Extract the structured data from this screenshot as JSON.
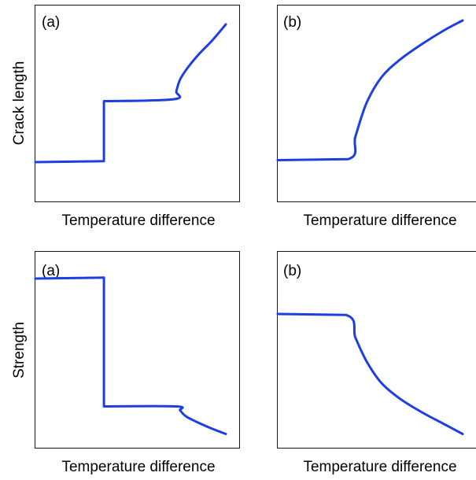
{
  "colors": {
    "curve": "#1d3fe0",
    "frame": "#1a1a1a"
  },
  "chart_data": [
    {
      "type": "line",
      "panel_label": "(a)",
      "xlabel": "Temperature difference",
      "ylabel": "Crack length",
      "x_range": [
        0,
        1
      ],
      "y_range": [
        0,
        1
      ],
      "series": [
        {
          "x": [
            0,
            0.36,
            0.36,
            0.73,
            0.74,
            0.76,
            0.8,
            0.86,
            0.93,
            1.0
          ],
          "y": [
            0.2,
            0.205,
            0.51,
            0.52,
            0.56,
            0.62,
            0.68,
            0.75,
            0.82,
            0.9
          ]
        }
      ]
    },
    {
      "type": "line",
      "panel_label": "(b)",
      "xlabel": "Temperature difference",
      "ylabel": "",
      "x_range": [
        0,
        1
      ],
      "y_range": [
        0,
        1
      ],
      "series": [
        {
          "x": [
            0,
            0.38,
            0.42,
            0.48,
            0.56,
            0.66,
            0.78,
            0.9,
            1.0
          ],
          "y": [
            0.21,
            0.215,
            0.33,
            0.5,
            0.63,
            0.72,
            0.8,
            0.87,
            0.92
          ]
        }
      ]
    },
    {
      "type": "line",
      "panel_label": "(a)",
      "xlabel": "Temperature difference",
      "ylabel": "Strength",
      "x_range": [
        0,
        1
      ],
      "y_range": [
        0,
        1
      ],
      "series": [
        {
          "x": [
            0,
            0.36,
            0.36,
            0.74,
            0.76,
            0.79,
            0.85,
            0.92,
            1.0
          ],
          "y": [
            0.86,
            0.865,
            0.21,
            0.21,
            0.19,
            0.16,
            0.13,
            0.1,
            0.07
          ]
        }
      ]
    },
    {
      "type": "line",
      "panel_label": "(b)",
      "xlabel": "Temperature difference",
      "ylabel": "",
      "x_range": [
        0,
        1
      ],
      "y_range": [
        0,
        1
      ],
      "series": [
        {
          "x": [
            0,
            0.37,
            0.42,
            0.48,
            0.56,
            0.66,
            0.78,
            0.9,
            1.0
          ],
          "y": [
            0.68,
            0.675,
            0.56,
            0.44,
            0.33,
            0.25,
            0.18,
            0.12,
            0.07
          ]
        }
      ]
    }
  ]
}
